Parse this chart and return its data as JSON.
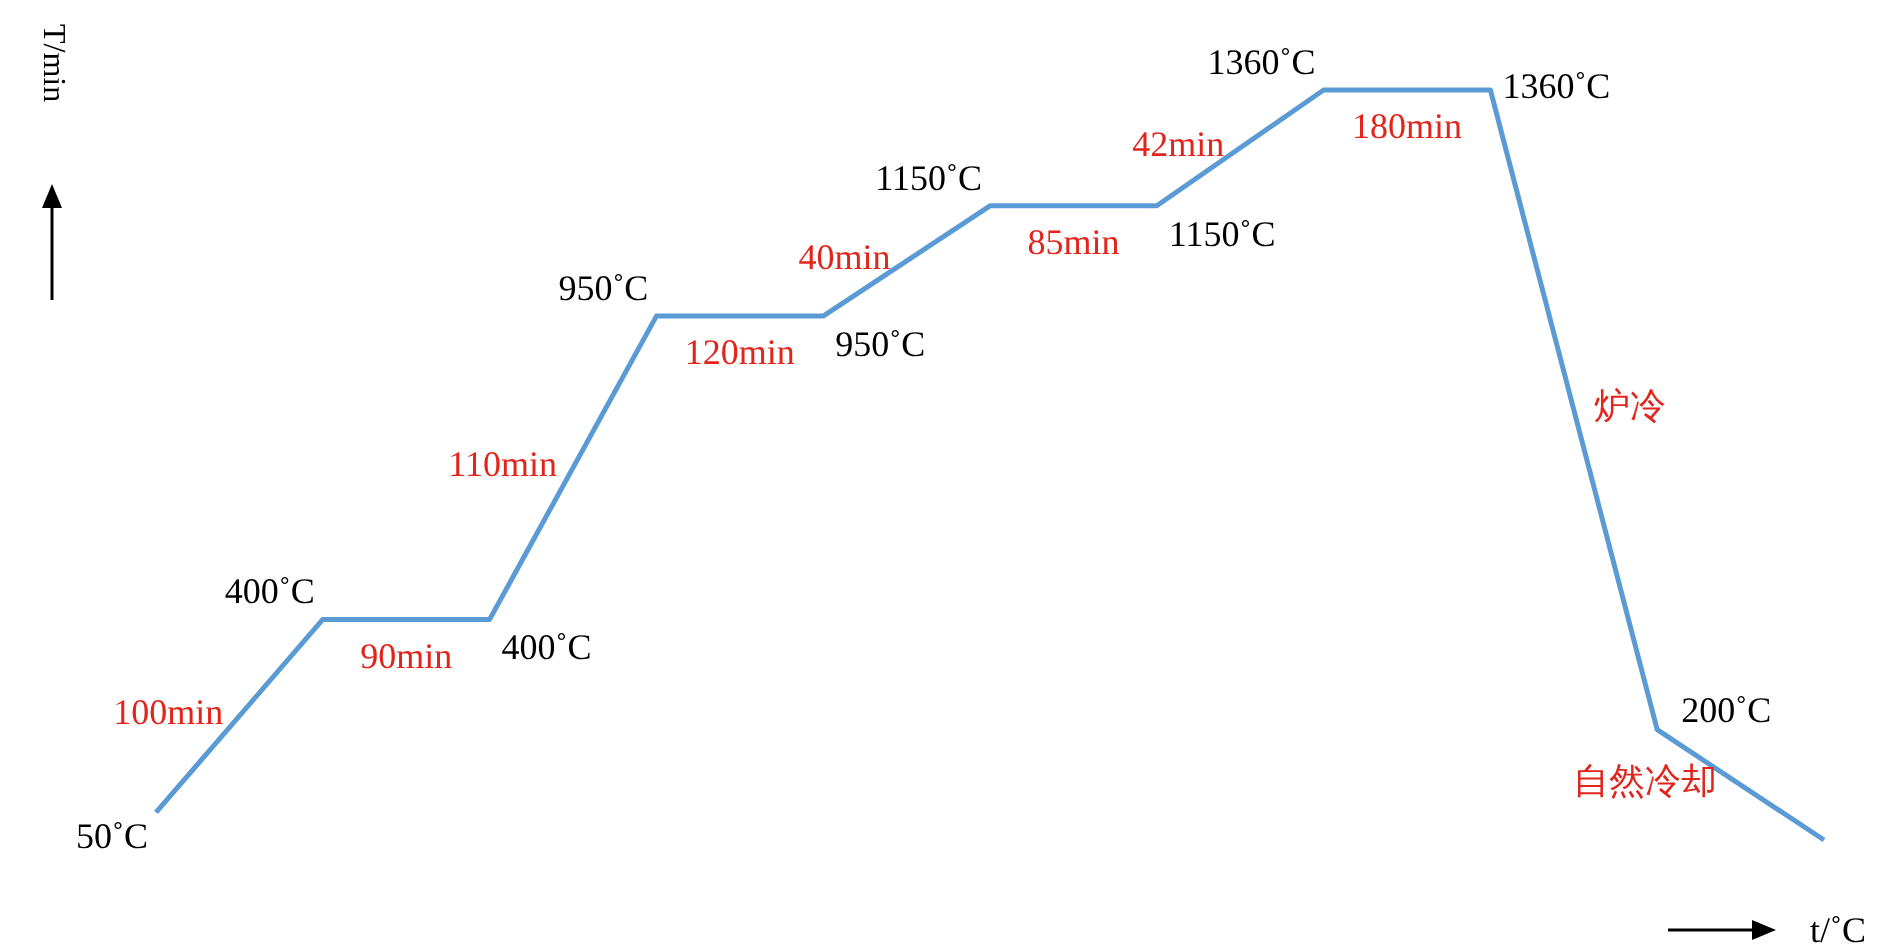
{
  "chart_data": {
    "type": "line",
    "xlabel": "t/˚C",
    "ylabel": "T/min",
    "categories": [
      null,
      null,
      null,
      null,
      null,
      null,
      null,
      null,
      null,
      null,
      null
    ],
    "marker": "none",
    "line_style": "solid",
    "series": [
      {
        "color": "#5b9bd5",
        "values": [
          50,
          400,
          400,
          950,
          950,
          1150,
          1150,
          1360,
          1360,
          200,
          0
        ],
        "value_labels": [
          "50˚C",
          "400˚C",
          "400˚C",
          "950˚C",
          "950˚C",
          "1150˚C",
          "1150˚C",
          "1360˚C",
          "1360˚C",
          "200˚C",
          null
        ]
      }
    ],
    "annotations": [
      "100min",
      "90min",
      "110min",
      "120min",
      "40min",
      "85min",
      "42min",
      "180min",
      "炉冷",
      "自然冷却"
    ]
  }
}
